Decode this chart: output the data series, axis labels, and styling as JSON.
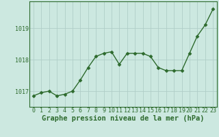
{
  "x": [
    0,
    1,
    2,
    3,
    4,
    5,
    6,
    7,
    8,
    9,
    10,
    11,
    12,
    13,
    14,
    15,
    16,
    17,
    18,
    19,
    20,
    21,
    22,
    23
  ],
  "y": [
    1016.85,
    1016.95,
    1017.0,
    1016.85,
    1016.9,
    1017.0,
    1017.35,
    1017.75,
    1018.1,
    1018.2,
    1018.25,
    1017.85,
    1018.2,
    1018.2,
    1018.2,
    1018.1,
    1017.75,
    1017.65,
    1017.65,
    1017.65,
    1018.2,
    1018.75,
    1019.1,
    1019.6
  ],
  "line_color": "#2d6a2d",
  "marker": "D",
  "marker_size": 2.5,
  "bg_color": "#cce8e0",
  "grid_color": "#b0cec8",
  "xlabel": "Graphe pression niveau de la mer (hPa)",
  "xlabel_fontsize": 7.5,
  "xlabel_color": "#2d6a2d",
  "ylabel_ticks": [
    1017,
    1018,
    1019
  ],
  "ylim": [
    1016.5,
    1019.85
  ],
  "xlim": [
    -0.5,
    23.5
  ],
  "tick_color": "#2d6a2d",
  "tick_fontsize": 6,
  "spine_color": "#2d6a2d",
  "linewidth": 1.0
}
